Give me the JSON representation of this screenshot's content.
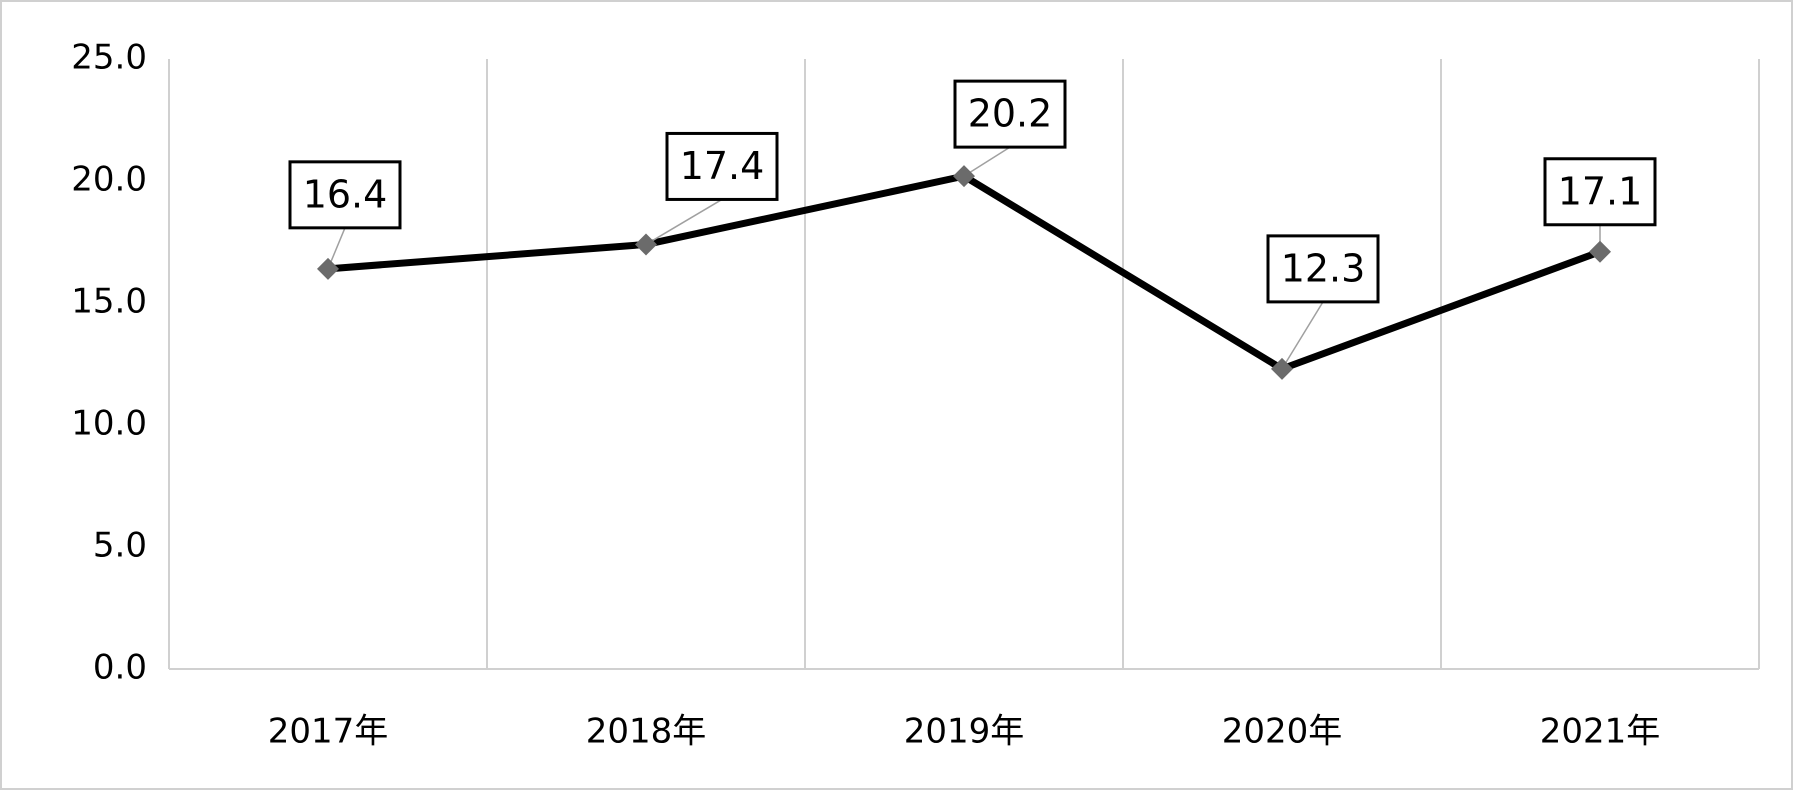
{
  "chart_data": {
    "type": "line",
    "categories": [
      "2017年",
      "2018年",
      "2019年",
      "2020年",
      "2021年"
    ],
    "values": [
      16.4,
      17.4,
      20.2,
      12.3,
      17.1
    ],
    "color": "#000000",
    "marker_color": "#6b6b6b",
    "ylim": [
      0,
      25
    ],
    "yticks": [
      {
        "value": 0,
        "label": "0.0"
      },
      {
        "value": 5,
        "label": "5.0"
      },
      {
        "value": 10,
        "label": "10.0"
      },
      {
        "value": 15,
        "label": "15.0"
      },
      {
        "value": 20,
        "label": "20.0"
      },
      {
        "value": 25,
        "label": "25.0"
      }
    ],
    "vertical_grid": true
  }
}
